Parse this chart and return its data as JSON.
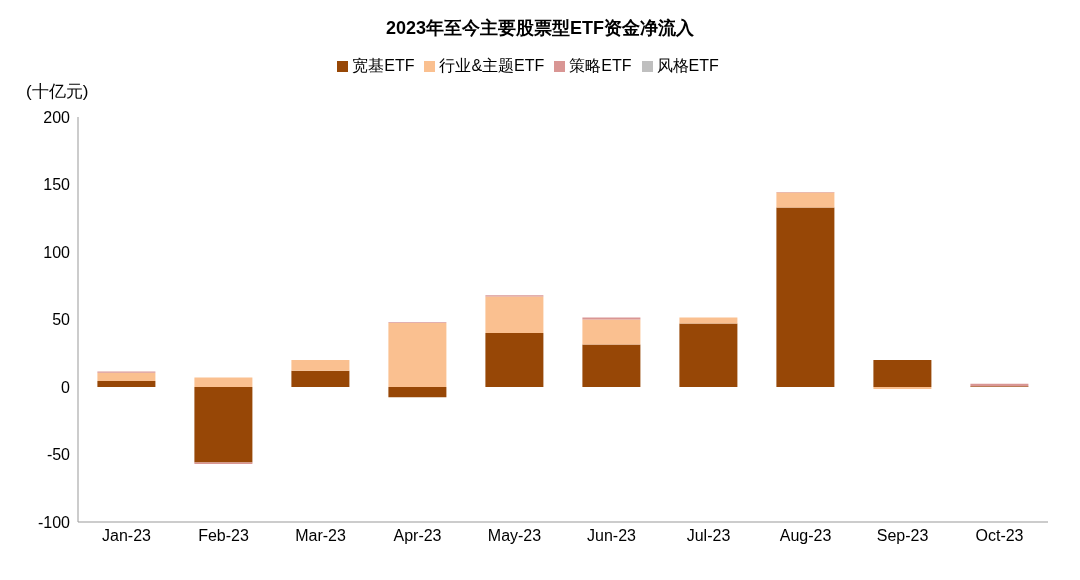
{
  "chart_data": {
    "type": "bar",
    "title": "2023年至今主要股票型ETF资金净流入",
    "ylabel": "(十亿元)",
    "categories": [
      "Jan-23",
      "Feb-23",
      "Mar-23",
      "Apr-23",
      "May-23",
      "Jun-23",
      "Jul-23",
      "Aug-23",
      "Sep-23",
      "Oct-23"
    ],
    "series": [
      {
        "name": "宽基ETF",
        "color": "#974706",
        "values": [
          4.5,
          -56,
          12,
          -7.5,
          40,
          31.5,
          47,
          133,
          20,
          0.5
        ]
      },
      {
        "name": "行业&主题ETF",
        "color": "#fac090",
        "values": [
          6,
          7,
          8,
          47.5,
          27,
          18.5,
          4.5,
          11,
          -1.5,
          0
        ]
      },
      {
        "name": "策略ETF",
        "color": "#d99694",
        "values": [
          1,
          -1,
          0,
          0.5,
          1,
          1.5,
          0,
          0.5,
          0,
          2
        ]
      },
      {
        "name": "风格ETF",
        "color": "#bfbfbf",
        "values": [
          0,
          0,
          0,
          0,
          0,
          0,
          0,
          0,
          0,
          0
        ]
      }
    ],
    "stacked": true,
    "ylim": [
      -100,
      200
    ],
    "yticks": [
      -100,
      -50,
      0,
      50,
      100,
      150,
      200
    ],
    "legend": "top"
  }
}
